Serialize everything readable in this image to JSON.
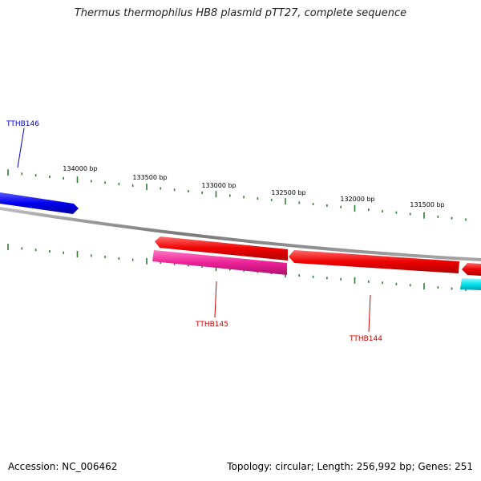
{
  "title": "Thermus thermophilus HB8 plasmid pTT27, complete sequence",
  "footer": {
    "accession": "Accession: NC_006462",
    "summary": "Topology: circular; Length: 256,992 bp; Genes: 251"
  },
  "colors": {
    "backbone": "#8a8a8a",
    "ticks": "#2e7d32",
    "label_blue": "#0000cc",
    "label_red": "#cc0000",
    "gene_blue": "#0000ee",
    "gene_red": "#ee0000",
    "gene_magenta": "#ee2299",
    "gene_cyan": "#00e5ee"
  },
  "scale_labels": [
    {
      "bp": 134000,
      "text": "134000 bp"
    },
    {
      "bp": 133500,
      "text": "133500 bp"
    },
    {
      "bp": 133000,
      "text": "133000 bp"
    },
    {
      "bp": 132500,
      "text": "132500 bp"
    },
    {
      "bp": 132000,
      "text": "132000 bp"
    },
    {
      "bp": 131500,
      "text": "131500 bp"
    }
  ],
  "genes": [
    {
      "id": "TTHB146",
      "label": "TTHB146",
      "strand": "forward",
      "color": "blue",
      "start": 134200,
      "end": 134620
    },
    {
      "id": "TTHB145",
      "label": "TTHB145",
      "strand": "reverse",
      "color": "magenta",
      "start": 132550,
      "end": 133350
    },
    {
      "id": "TTHB145-red",
      "label": "",
      "strand": "forward",
      "color": "red",
      "start": 132550,
      "end": 133350
    },
    {
      "id": "TTHB144",
      "label": "TTHB144",
      "strand": "forward",
      "color": "red",
      "start": 131400,
      "end": 132550
    },
    {
      "id": "next-red",
      "label": "",
      "strand": "forward",
      "color": "red",
      "start": 131000,
      "end": 131400
    },
    {
      "id": "next-cyan",
      "label": "",
      "strand": "reverse",
      "color": "cyan",
      "start": 131000,
      "end": 131400
    }
  ]
}
